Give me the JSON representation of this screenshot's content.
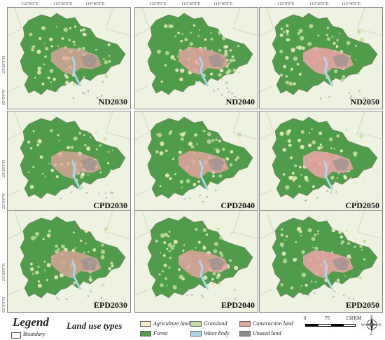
{
  "coords": {
    "top": [
      "112°0'0\"E",
      "113°20'0\"E",
      "114°40'0\"E"
    ],
    "left": [
      "23°20'0\"N",
      "22°0'0\"N"
    ]
  },
  "panels": [
    {
      "label": "ND2030"
    },
    {
      "label": "ND2040"
    },
    {
      "label": "ND2050"
    },
    {
      "label": "CPD2030"
    },
    {
      "label": "CPD2040"
    },
    {
      "label": "CPD2050"
    },
    {
      "label": "EPD2030"
    },
    {
      "label": "EPD2040"
    },
    {
      "label": "EPD2050"
    }
  ],
  "legend": {
    "title": "Legend",
    "boundary": "Boundary",
    "land_use_title": "Land use types",
    "classes": [
      {
        "label": "Agriculture land",
        "color": "#f2efc8"
      },
      {
        "label": "Forest",
        "color": "#4f9d4b"
      },
      {
        "label": "Grassland",
        "color": "#c6dca0"
      },
      {
        "label": "Water body",
        "color": "#a8d8e8"
      },
      {
        "label": "Construction land",
        "color": "#e7a4a0"
      },
      {
        "label": "Unused land",
        "color": "#8e8e8e"
      }
    ],
    "scale": {
      "ticks": [
        "0",
        "75",
        "150"
      ],
      "unit": "KM"
    },
    "compass": {
      "n": "N",
      "s": "S",
      "e": "E",
      "w": "W"
    }
  }
}
